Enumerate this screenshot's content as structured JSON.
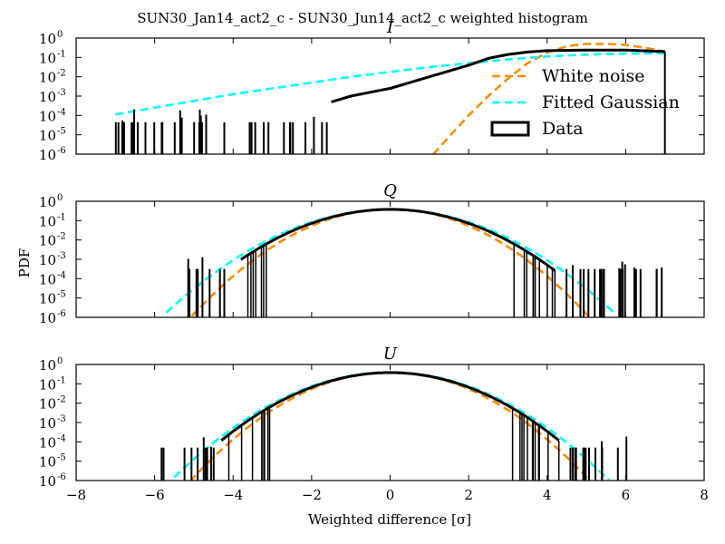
{
  "figure": {
    "title": "SUN30_Jan14_act2_c - SUN30_Jun14_act2_c weighted histogram",
    "ylabel": "PDF",
    "xlabel": "Weighted difference [σ]"
  },
  "legend": {
    "placement": "right, inside top panel",
    "entries": [
      {
        "label": "White noise",
        "style": "dashed",
        "color": "#ff8c00"
      },
      {
        "label": "Fitted Gaussian",
        "style": "dashed",
        "color": "#00ffff"
      },
      {
        "label": "Data",
        "style": "box",
        "color": "#000000"
      }
    ]
  },
  "colors": {
    "white_noise": "#ff8c00",
    "gaussian": "#00ffff",
    "data": "#000000"
  },
  "chart_data": [
    {
      "type": "line",
      "subtitle": "I",
      "xlim": [
        -8,
        8
      ],
      "ylim_log10": [
        -6,
        0
      ],
      "log_y": true,
      "xticks": [
        -8,
        -6,
        -4,
        -2,
        0,
        2,
        4,
        6,
        8
      ],
      "yticks": [
        {
          "base": "10",
          "exp": "0",
          "value": 0
        },
        {
          "base": "10",
          "exp": "-1",
          "value": -1
        },
        {
          "base": "10",
          "exp": "-2",
          "value": -2
        },
        {
          "base": "10",
          "exp": "-3",
          "value": -3
        },
        {
          "base": "10",
          "exp": "-4",
          "value": -4
        },
        {
          "base": "10",
          "exp": "-5",
          "value": -5
        },
        {
          "base": "10",
          "exp": "-6",
          "value": -6
        }
      ],
      "series": [
        {
          "name": "White noise",
          "x": [
            1.1,
            1.5,
            2.0,
            2.5,
            3.0,
            3.5,
            4.0,
            4.5,
            5.0,
            5.5,
            6.0,
            6.5,
            7.0
          ],
          "log10_y": [
            -6.0,
            -5.1,
            -4.0,
            -3.0,
            -2.1,
            -1.3,
            -0.75,
            -0.42,
            -0.3,
            -0.3,
            -0.35,
            -0.5,
            -0.7
          ]
        },
        {
          "name": "Fitted Gaussian",
          "x": [
            -7.0,
            -6.0,
            -5.0,
            -4.0,
            -3.0,
            -2.0,
            -1.0,
            0.0,
            1.0,
            2.0,
            3.0,
            4.0,
            5.0,
            6.0,
            7.0
          ],
          "log10_y": [
            -3.95,
            -3.6,
            -3.25,
            -2.9,
            -2.6,
            -2.3,
            -2.0,
            -1.75,
            -1.5,
            -1.3,
            -1.1,
            -0.95,
            -0.85,
            -0.8,
            -0.78
          ]
        },
        {
          "name": "Data",
          "x": [
            -1.5,
            -1.0,
            -0.5,
            0.0,
            0.5,
            1.0,
            1.5,
            2.0,
            2.5,
            3.0,
            3.5,
            4.0,
            5.0,
            6.0,
            7.0
          ],
          "log10_y": [
            -3.3,
            -3.0,
            -2.8,
            -2.6,
            -2.3,
            -2.0,
            -1.7,
            -1.4,
            -1.05,
            -0.85,
            -0.72,
            -0.65,
            -0.62,
            -0.62,
            -0.7
          ],
          "spikes": {
            "x_min": -7.0,
            "x_max": -1.5,
            "log10_y": -4.35
          }
        }
      ]
    },
    {
      "type": "line",
      "subtitle": "Q",
      "xlim": [
        -8,
        8
      ],
      "ylim_log10": [
        -6,
        0
      ],
      "log_y": true,
      "xticks": [
        -8,
        -6,
        -4,
        -2,
        0,
        2,
        4,
        6,
        8
      ],
      "yticks": [
        {
          "base": "10",
          "exp": "0",
          "value": 0
        },
        {
          "base": "10",
          "exp": "-1",
          "value": -1
        },
        {
          "base": "10",
          "exp": "-2",
          "value": -2
        },
        {
          "base": "10",
          "exp": "-3",
          "value": -3
        },
        {
          "base": "10",
          "exp": "-4",
          "value": -4
        },
        {
          "base": "10",
          "exp": "-5",
          "value": -5
        },
        {
          "base": "10",
          "exp": "-6",
          "value": -6
        }
      ],
      "series": [
        {
          "name": "White noise",
          "mu": 0.0,
          "sigma": 1.0,
          "amplitude": 0.4,
          "x_range": [
            -5.3,
            5.3
          ]
        },
        {
          "name": "Fitted Gaussian",
          "mu": 0.0,
          "sigma": 1.15,
          "amplitude": 0.38,
          "x_range": [
            -5.7,
            5.7
          ]
        },
        {
          "name": "Data",
          "mu": 0.0,
          "sigma": 1.1,
          "amplitude": 0.38,
          "x_range": [
            -3.8,
            4.2
          ],
          "spikes": [
            {
              "x_min": -5.5,
              "x_max": -3.8,
              "log10_y": -3.5
            },
            {
              "x_min": 4.2,
              "x_max": 7.0,
              "log10_y": -3.5
            }
          ]
        }
      ]
    },
    {
      "type": "line",
      "subtitle": "U",
      "xlim": [
        -8,
        8
      ],
      "ylim_log10": [
        -6,
        0
      ],
      "log_y": true,
      "xticks": [
        -8,
        -6,
        -4,
        -2,
        0,
        2,
        4,
        6,
        8
      ],
      "yticks": [
        {
          "base": "10",
          "exp": "0",
          "value": 0
        },
        {
          "base": "10",
          "exp": "-1",
          "value": -1
        },
        {
          "base": "10",
          "exp": "-2",
          "value": -2
        },
        {
          "base": "10",
          "exp": "-3",
          "value": -3
        },
        {
          "base": "10",
          "exp": "-4",
          "value": -4
        },
        {
          "base": "10",
          "exp": "-5",
          "value": -5
        },
        {
          "base": "10",
          "exp": "-6",
          "value": -6
        }
      ],
      "series": [
        {
          "name": "White noise",
          "mu": 0.0,
          "sigma": 1.0,
          "amplitude": 0.4,
          "x_range": [
            -5.1,
            5.3
          ]
        },
        {
          "name": "Fitted Gaussian",
          "mu": 0.0,
          "sigma": 1.1,
          "amplitude": 0.39,
          "x_range": [
            -5.5,
            5.7
          ]
        },
        {
          "name": "Data",
          "mu": 0.0,
          "sigma": 1.07,
          "amplitude": 0.38,
          "x_range": [
            -4.3,
            4.3
          ],
          "spikes": [
            {
              "x_min": -5.9,
              "x_max": -4.3,
              "log10_y": -4.3
            },
            {
              "x_min": 4.3,
              "x_max": 6.2,
              "log10_y": -4.3
            }
          ]
        }
      ]
    }
  ]
}
